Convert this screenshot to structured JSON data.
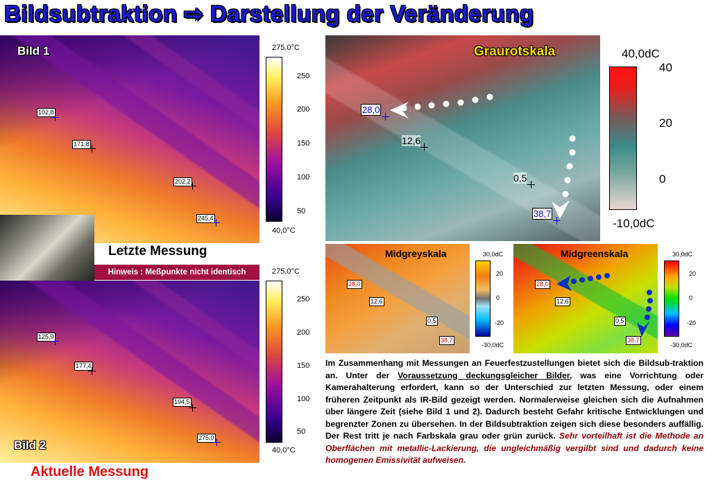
{
  "title": "Bildsubtraktion ⇨ Darstellung der Veränderung",
  "image1": {
    "label": "Bild 1",
    "caption": "Letzte Messung",
    "points": [
      "102,8",
      "171,8",
      "202,2",
      "245,4"
    ],
    "scale": {
      "max": "275,0°C",
      "min": "40,0°C",
      "ticks": [
        "250",
        "200",
        "150",
        "100",
        "50"
      ]
    }
  },
  "hint": "Hinweis : Meßpunkte nicht identisch",
  "image2": {
    "label": "Bild 2",
    "caption": "Aktuelle Messung",
    "points": [
      "125,9",
      "177,4",
      "194,5",
      "275,0"
    ],
    "scale": {
      "max": "275,0°C",
      "min": "40,0°C",
      "ticks": [
        "250",
        "200",
        "150",
        "100",
        "50"
      ]
    }
  },
  "graurot": {
    "label": "Graurotskala",
    "points": [
      "28,0",
      "12,6",
      "0,5",
      "38,7"
    ],
    "scale": {
      "max": "40,0dC",
      "min": "-10,0dC",
      "ticks": [
        "40",
        "20",
        "0"
      ]
    }
  },
  "midgrey": {
    "label": "Midgreyskala",
    "points": [
      "28,0",
      "12,6",
      "0,5",
      "38,7"
    ],
    "scale": {
      "max": "30,0dC",
      "min": "-30,0dC",
      "ticks": [
        "20",
        "0",
        "-20"
      ]
    }
  },
  "midgreen": {
    "label": "Midgreenskala",
    "points": [
      "28,0",
      "12,6",
      "0,5",
      "38,7"
    ],
    "scale": {
      "max": "30,0dC",
      "min": "-30,0dC",
      "ticks": [
        "20",
        "0",
        "-20"
      ]
    }
  },
  "description": {
    "part1": "Im Zusammenhang mit Messungen an Feuerfestzustellungen bietet sich die Bildsub-traktion an. Unter der ",
    "underlined": "Voraussetzung deckungsgleicher Bilder",
    "part2": ", was eine Vorrichtung oder Kamerahalterung erfordert, kann so der Unterschied zur letzten Messung, oder einem früheren Zeitpunkt als IR-Bild gezeigt werden. Normalerweise gleichen sich die Aufnahmen über längere Zeit (siehe Bild 1 und 2). Dadurch besteht Gefahr kritische Entwicklungen und begrenzter Zonen zu übersehen. In der Bildsubtraktion zeigen sich diese besonders auffällig. Der Rest tritt je nach Farbskala grau oder grün zurück. ",
    "emphasis": "Sehr vorteilhaft ist die Methode an Oberflächen mit metallic-Lackierung, die ungleichmäßig vergilbt sind und dadurch keine homogenen Emissivität aufweisen."
  },
  "colors": {
    "title": "#1a1ad0",
    "caption_red": "#e01010",
    "hint_bg": "#a01040",
    "emphasis": "#8a0000",
    "point_blue": "#0000ff"
  }
}
